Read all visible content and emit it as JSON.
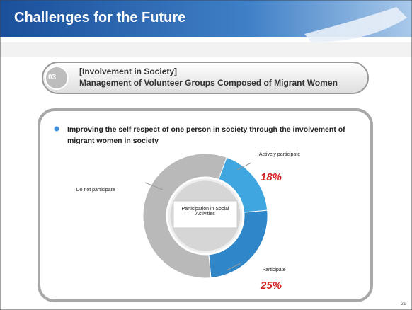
{
  "header": {
    "title": "Challenges for the Future"
  },
  "section": {
    "number": "03",
    "label": "[Involvement in Society]",
    "title": "Management of Volunteer Groups Composed of Migrant Women"
  },
  "bullet": "Improving the self respect of one person in society through the involvement of migrant women in society",
  "page_number": "21",
  "chart_data": {
    "type": "donut",
    "center_label": "Participation in Social Activities",
    "categories": [
      "Actively participate",
      "Participate",
      "Do not participate"
    ],
    "values": [
      18,
      25,
      57
    ],
    "value_labels": [
      "18%",
      "25%",
      null
    ],
    "colors": [
      "#3fa6e0",
      "#2f86c8",
      "#b9b9b9"
    ]
  }
}
